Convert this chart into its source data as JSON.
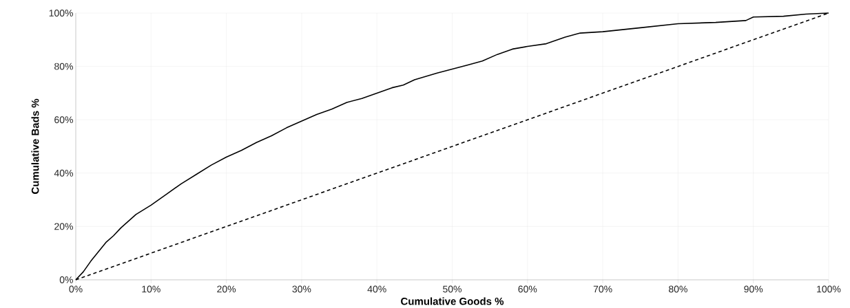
{
  "chart_data": {
    "type": "line",
    "xlabel": "Cumulative Goods %",
    "ylabel": "Cumulative Bads %",
    "xlim": [
      0,
      100
    ],
    "ylim": [
      0,
      100
    ],
    "xticks": [
      {
        "value": 0,
        "label": "0%"
      },
      {
        "value": 10,
        "label": "10%"
      },
      {
        "value": 20,
        "label": "20%"
      },
      {
        "value": 30,
        "label": "30%"
      },
      {
        "value": 40,
        "label": "40%"
      },
      {
        "value": 50,
        "label": "50%"
      },
      {
        "value": 60,
        "label": "60%"
      },
      {
        "value": 70,
        "label": "70%"
      },
      {
        "value": 80,
        "label": "80%"
      },
      {
        "value": 90,
        "label": "90%"
      },
      {
        "value": 100,
        "label": "100%"
      }
    ],
    "yticks": [
      {
        "value": 0,
        "label": "0%"
      },
      {
        "value": 20,
        "label": "20%"
      },
      {
        "value": 40,
        "label": "40%"
      },
      {
        "value": 60,
        "label": "60%"
      },
      {
        "value": 80,
        "label": "80%"
      },
      {
        "value": 100,
        "label": "100%"
      }
    ],
    "grid": true,
    "series": [
      {
        "color": "#000000",
        "line_style": "solid",
        "x": [
          0,
          1,
          2,
          3,
          4,
          5,
          6,
          7,
          8,
          10,
          12,
          14,
          16,
          18,
          20,
          22,
          24,
          26,
          28,
          30,
          32,
          34,
          36,
          38,
          40,
          42,
          43.5,
          45,
          48,
          50,
          52,
          54,
          56,
          58,
          60,
          62.5,
          65,
          67,
          70,
          75,
          80,
          85,
          89,
          90,
          94,
          97,
          100
        ],
        "values": [
          0,
          3,
          7,
          10.5,
          14,
          16.5,
          19.5,
          22,
          24.5,
          28,
          32,
          36,
          39.5,
          43,
          46,
          48.5,
          51.5,
          54,
          57,
          59.5,
          62,
          64,
          66.5,
          68,
          70,
          72,
          73,
          75,
          77.5,
          79,
          80.5,
          82,
          84.5,
          86.5,
          87.5,
          88.5,
          91,
          92.5,
          93,
          94.5,
          96,
          96.5,
          97.2,
          98.5,
          98.8,
          99.6,
          100
        ]
      },
      {
        "color": "#000000",
        "line_style": "dashed",
        "x": [
          0,
          100
        ],
        "values": [
          0,
          100
        ]
      }
    ]
  }
}
